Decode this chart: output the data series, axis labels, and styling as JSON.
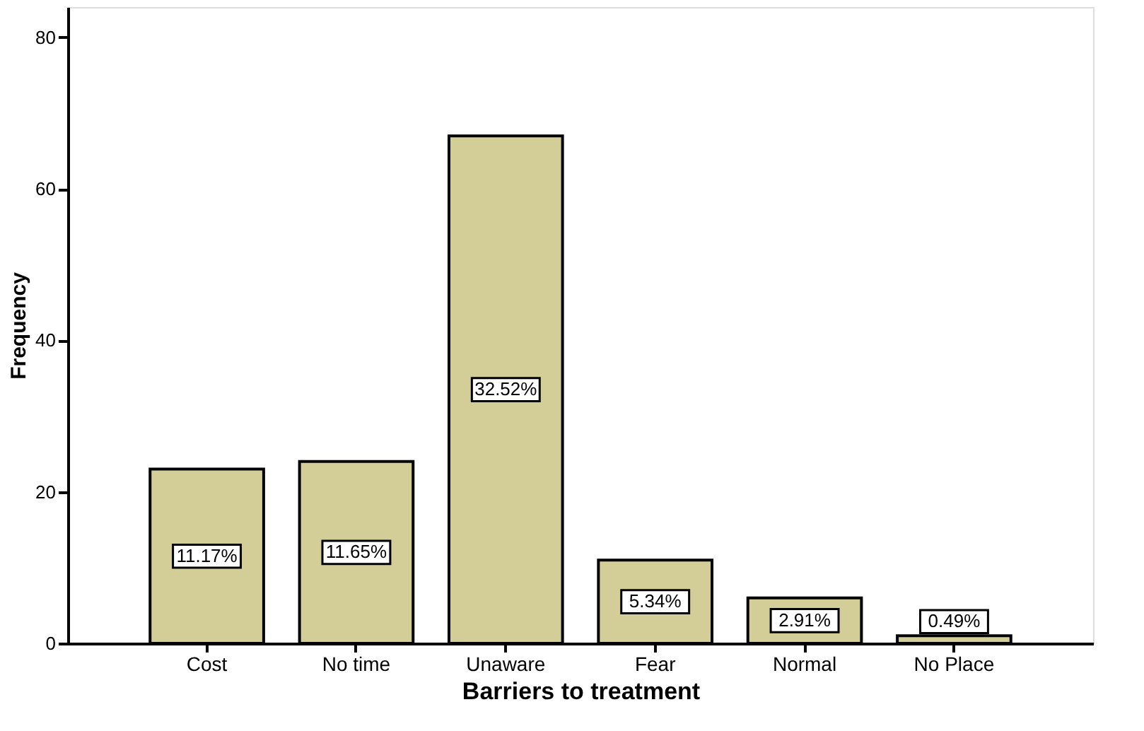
{
  "chart_data": {
    "type": "bar",
    "xlabel": "Barriers to treatment",
    "ylabel": "Frequency",
    "categories": [
      "Cost",
      "No time",
      "Unaware",
      "Fear",
      "Normal",
      "No Place"
    ],
    "values": [
      23,
      24,
      67,
      11,
      6,
      1
    ],
    "annotations": [
      "11.17%",
      "11.65%",
      "32.52%",
      "5.34%",
      "2.91%",
      "0.49%"
    ],
    "color": "#d3ce98",
    "ylim": [
      0,
      84
    ],
    "yticks": [
      0,
      20,
      40,
      60,
      80
    ],
    "grid": false
  }
}
